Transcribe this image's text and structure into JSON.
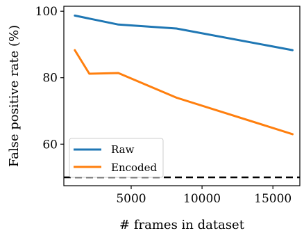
{
  "chart_data": {
    "type": "line",
    "xlabel": "# frames in dataset",
    "ylabel": "False positive rate (%)",
    "xlim": [
      250,
      16900
    ],
    "ylim": [
      47.5,
      101.5
    ],
    "xticks": [
      5000,
      10000,
      15000
    ],
    "yticks": [
      60,
      80,
      100
    ],
    "xtick_labels": [
      "5000",
      "10000",
      "15000"
    ],
    "ytick_labels": [
      "60",
      "80",
      "100"
    ],
    "grid": false,
    "legend_position": "lower-left",
    "reference_line": {
      "y": 50,
      "style": "dashed",
      "color": "#000000"
    },
    "series": [
      {
        "name": "Raw",
        "color": "#1f77b4",
        "x": [
          1024,
          4096,
          8192,
          16384
        ],
        "y": [
          98.7,
          96.0,
          94.8,
          88.3
        ]
      },
      {
        "name": "Encoded",
        "color": "#ff7f0e",
        "x": [
          1024,
          2048,
          4096,
          8192,
          16384
        ],
        "y": [
          88.3,
          81.2,
          81.4,
          74.0,
          63.0
        ]
      }
    ]
  }
}
